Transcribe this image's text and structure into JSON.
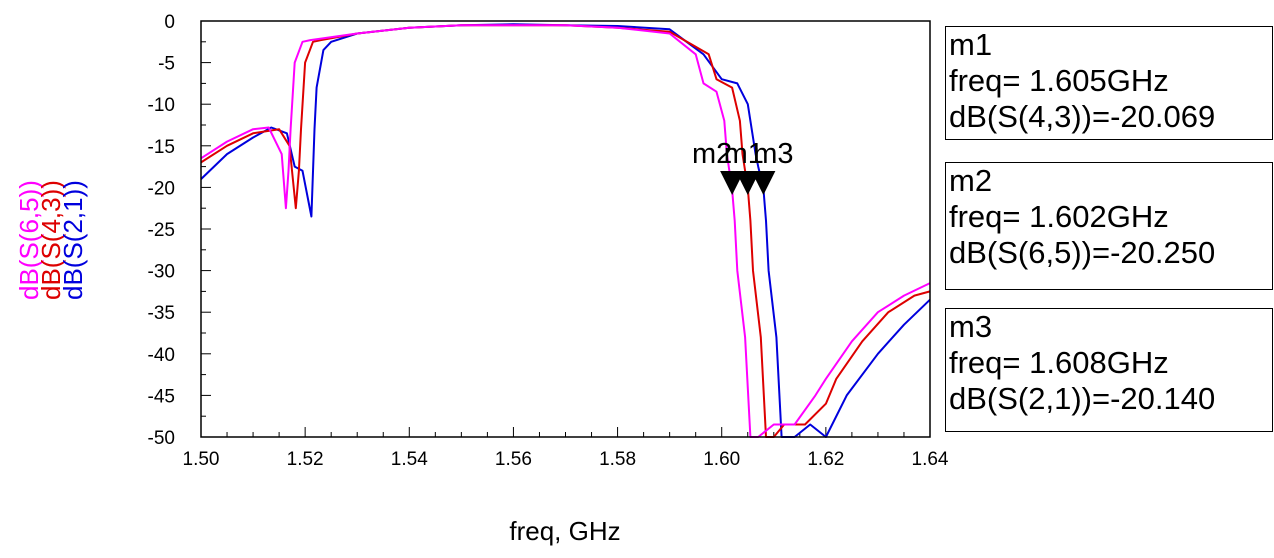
{
  "chart_data": {
    "type": "line",
    "xlabel": "freq, GHz",
    "ylabels": [
      "dB(S(6,5))",
      "dB(S(4,3))",
      "dB(S(2,1))"
    ],
    "xlim": [
      1.5,
      1.64
    ],
    "ylim": [
      -50,
      0
    ],
    "xticks": [
      "1.50",
      "1.52",
      "1.54",
      "1.56",
      "1.58",
      "1.60",
      "1.62",
      "1.64"
    ],
    "yticks": [
      "0",
      "-5",
      "-10",
      "-15",
      "-20",
      "-25",
      "-30",
      "-35",
      "-40",
      "-45",
      "-50"
    ],
    "colors": {
      "S65": "#ff00ff",
      "S43": "#dd0000",
      "S21": "#0000dd"
    },
    "series": [
      {
        "name": "dB(S(6,5))",
        "color": "#ff00ff",
        "x": [
          1.5,
          1.505,
          1.51,
          1.513,
          1.5155,
          1.5163,
          1.5168,
          1.5172,
          1.518,
          1.5195,
          1.521,
          1.53,
          1.54,
          1.55,
          1.56,
          1.57,
          1.58,
          1.59,
          1.595,
          1.5965,
          1.599,
          1.6005,
          1.601,
          1.602,
          1.6025,
          1.603,
          1.6045,
          1.6055,
          1.607,
          1.61,
          1.614,
          1.618,
          1.62,
          1.625,
          1.63,
          1.635,
          1.64
        ],
        "y": [
          -16.5,
          -14.5,
          -13.0,
          -12.8,
          -16.0,
          -22.5,
          -18.0,
          -13.0,
          -5.0,
          -2.5,
          -2.3,
          -1.5,
          -0.8,
          -0.5,
          -0.5,
          -0.5,
          -0.8,
          -1.5,
          -4.0,
          -7.5,
          -8.5,
          -12.0,
          -16.0,
          -20.25,
          -24.0,
          -30.0,
          -38.0,
          -50.0,
          -50.0,
          -48.5,
          -48.5,
          -45.0,
          -43.0,
          -38.5,
          -35.0,
          -33.0,
          -31.5
        ]
      },
      {
        "name": "dB(S(4,3))",
        "color": "#dd0000",
        "x": [
          1.5,
          1.505,
          1.51,
          1.515,
          1.517,
          1.5182,
          1.5188,
          1.5192,
          1.52,
          1.5215,
          1.523,
          1.53,
          1.54,
          1.55,
          1.56,
          1.57,
          1.58,
          1.59,
          1.5975,
          1.599,
          1.602,
          1.6035,
          1.604,
          1.605,
          1.6055,
          1.606,
          1.6075,
          1.6085,
          1.61,
          1.612,
          1.616,
          1.62,
          1.622,
          1.627,
          1.632,
          1.637,
          1.64
        ],
        "y": [
          -17.0,
          -15.0,
          -13.5,
          -13.0,
          -15.0,
          -22.5,
          -18.0,
          -13.0,
          -5.0,
          -2.5,
          -2.3,
          -1.5,
          -0.8,
          -0.5,
          -0.5,
          -0.5,
          -0.8,
          -1.3,
          -4.0,
          -7.0,
          -8.0,
          -12.0,
          -16.0,
          -20.069,
          -24.0,
          -30.0,
          -38.0,
          -50.0,
          -50.0,
          -48.5,
          -48.5,
          -46.0,
          -43.0,
          -38.5,
          -35.0,
          -33.0,
          -32.5
        ]
      },
      {
        "name": "dB(S(2,1))",
        "color": "#0000dd",
        "x": [
          1.5,
          1.505,
          1.51,
          1.5135,
          1.5165,
          1.518,
          1.5195,
          1.5212,
          1.5218,
          1.5222,
          1.5235,
          1.525,
          1.53,
          1.54,
          1.55,
          1.56,
          1.57,
          1.58,
          1.59,
          1.5965,
          1.6,
          1.603,
          1.605,
          1.6065,
          1.607,
          1.608,
          1.6085,
          1.609,
          1.6105,
          1.6115,
          1.614,
          1.617,
          1.62,
          1.624,
          1.63,
          1.635,
          1.64
        ],
        "y": [
          -19.0,
          -16.0,
          -14.0,
          -12.8,
          -13.5,
          -17.5,
          -18.0,
          -23.5,
          -13.0,
          -8.0,
          -3.5,
          -2.5,
          -1.5,
          -0.8,
          -0.5,
          -0.4,
          -0.5,
          -0.6,
          -1.0,
          -4.0,
          -7.0,
          -7.5,
          -10.0,
          -16.0,
          -17.5,
          -20.14,
          -24.0,
          -30.0,
          -38.0,
          -50.0,
          -50.0,
          -48.5,
          -50.0,
          -45.0,
          -40.0,
          -36.5,
          -33.5
        ]
      }
    ],
    "markers": [
      {
        "label": "m1",
        "x": 1.605,
        "y": -20.069
      },
      {
        "label": "m2",
        "x": 1.602,
        "y": -20.25
      },
      {
        "label": "m3",
        "x": 1.608,
        "y": -20.14
      }
    ],
    "marker_boxes": [
      {
        "name": "m1",
        "freq": "freq= 1.605GHz",
        "value": "dB(S(4,3))=-20.069"
      },
      {
        "name": "m2",
        "freq": "freq= 1.602GHz",
        "value": "dB(S(6,5))=-20.250"
      },
      {
        "name": "m3",
        "freq": "freq= 1.608GHz",
        "value": "dB(S(2,1))=-20.140"
      }
    ]
  }
}
